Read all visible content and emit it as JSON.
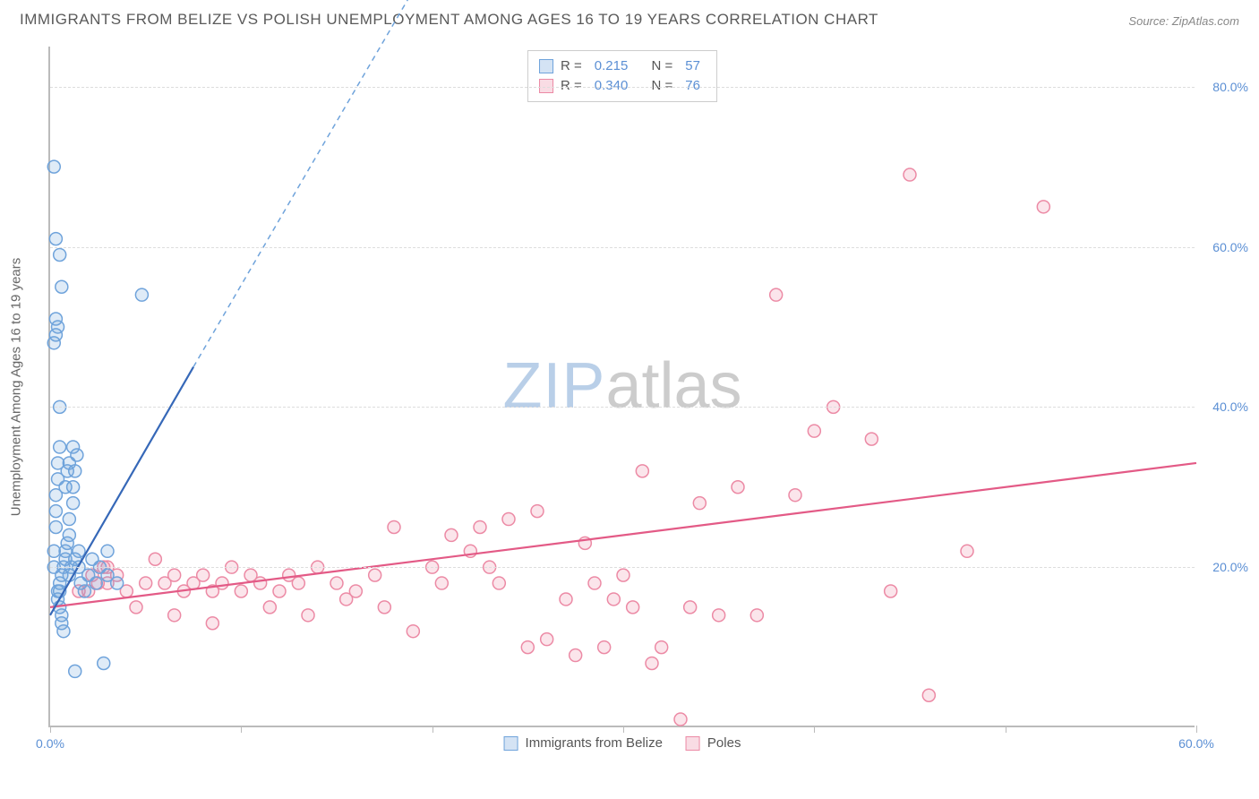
{
  "title": "IMMIGRANTS FROM BELIZE VS POLISH UNEMPLOYMENT AMONG AGES 16 TO 19 YEARS CORRELATION CHART",
  "source_label": "Source:",
  "source_value": "ZipAtlas.com",
  "watermark_zip": "ZIP",
  "watermark_atlas": "atlas",
  "chart": {
    "type": "scatter-with-regression",
    "ylabel": "Unemployment Among Ages 16 to 19 years",
    "background_color": "#ffffff",
    "grid_color": "#dddddd",
    "axis_color": "#bbbbbb",
    "tick_label_color": "#5b8fd4",
    "ylabel_color": "#666666",
    "label_fontsize": 15,
    "tick_fontsize": 14,
    "xlim": [
      0,
      60
    ],
    "ylim": [
      0,
      85
    ],
    "xtick_positions": [
      0,
      10,
      20,
      30,
      40,
      50,
      60
    ],
    "xtick_labels": [
      "0.0%",
      "",
      "",
      "",
      "",
      "",
      "60.0%"
    ],
    "ytick_positions": [
      20,
      40,
      60,
      80
    ],
    "ytick_labels": [
      "20.0%",
      "40.0%",
      "60.0%",
      "80.0%"
    ],
    "marker_radius": 7,
    "marker_stroke_width": 1.5,
    "marker_fill_opacity": 0.22,
    "trend_line_width": 2.2,
    "series": {
      "belize": {
        "label": "Immigrants from Belize",
        "color": "#6fa3db",
        "line_color": "#3668b8",
        "R": "0.215",
        "N": "57",
        "trend": {
          "x1": 0,
          "y1": 14,
          "x2": 7.5,
          "y2": 45,
          "dashed_to_x": 19,
          "dashed_to_y": 92
        },
        "points": [
          [
            0.2,
            20
          ],
          [
            0.2,
            22
          ],
          [
            0.3,
            25
          ],
          [
            0.3,
            27
          ],
          [
            0.3,
            29
          ],
          [
            0.4,
            31
          ],
          [
            0.4,
            33
          ],
          [
            0.5,
            35
          ],
          [
            0.5,
            40
          ],
          [
            0.2,
            48
          ],
          [
            0.3,
            49
          ],
          [
            0.4,
            50
          ],
          [
            0.3,
            51
          ],
          [
            0.6,
            55
          ],
          [
            0.5,
            59
          ],
          [
            0.3,
            61
          ],
          [
            0.2,
            70
          ],
          [
            0.5,
            18
          ],
          [
            0.5,
            17
          ],
          [
            0.6,
            19
          ],
          [
            0.7,
            20
          ],
          [
            0.8,
            21
          ],
          [
            0.8,
            22
          ],
          [
            0.9,
            23
          ],
          [
            1.0,
            24
          ],
          [
            1.0,
            26
          ],
          [
            1.2,
            28
          ],
          [
            1.2,
            30
          ],
          [
            1.3,
            32
          ],
          [
            1.4,
            34
          ],
          [
            1.5,
            20
          ],
          [
            1.6,
            18
          ],
          [
            1.8,
            17
          ],
          [
            2.0,
            19
          ],
          [
            2.2,
            21
          ],
          [
            2.4,
            18
          ],
          [
            2.6,
            20
          ],
          [
            3.0,
            19
          ],
          [
            3.0,
            22
          ],
          [
            3.5,
            18
          ],
          [
            4.8,
            54
          ],
          [
            2.8,
            8
          ],
          [
            1.3,
            7
          ],
          [
            0.6,
            14
          ],
          [
            0.5,
            15
          ],
          [
            0.4,
            16
          ],
          [
            0.4,
            17
          ],
          [
            1.0,
            19
          ],
          [
            1.1,
            20
          ],
          [
            1.3,
            21
          ],
          [
            1.5,
            22
          ],
          [
            0.8,
            30
          ],
          [
            0.9,
            32
          ],
          [
            1.0,
            33
          ],
          [
            1.2,
            35
          ],
          [
            0.6,
            13
          ],
          [
            0.7,
            12
          ]
        ]
      },
      "poles": {
        "label": "Poles",
        "color": "#ec8aa5",
        "line_color": "#e35a86",
        "R": "0.340",
        "N": "76",
        "trend": {
          "x1": 0,
          "y1": 15,
          "x2": 60,
          "y2": 33
        },
        "points": [
          [
            1.5,
            17
          ],
          [
            2.0,
            17
          ],
          [
            2.5,
            18
          ],
          [
            3.0,
            18
          ],
          [
            3.5,
            19
          ],
          [
            4.0,
            17
          ],
          [
            5.0,
            18
          ],
          [
            5.5,
            21
          ],
          [
            6.0,
            18
          ],
          [
            6.5,
            19
          ],
          [
            7.0,
            17
          ],
          [
            7.5,
            18
          ],
          [
            8.0,
            19
          ],
          [
            8.5,
            17
          ],
          [
            9.0,
            18
          ],
          [
            9.5,
            20
          ],
          [
            10.0,
            17
          ],
          [
            10.5,
            19
          ],
          [
            11.0,
            18
          ],
          [
            12.0,
            17
          ],
          [
            12.5,
            19
          ],
          [
            13.0,
            18
          ],
          [
            14.0,
            20
          ],
          [
            15.0,
            18
          ],
          [
            16.0,
            17
          ],
          [
            17.0,
            19
          ],
          [
            18.0,
            25
          ],
          [
            19.0,
            12
          ],
          [
            20.0,
            20
          ],
          [
            20.5,
            18
          ],
          [
            21.0,
            24
          ],
          [
            22.0,
            22
          ],
          [
            22.5,
            25
          ],
          [
            23.0,
            20
          ],
          [
            23.5,
            18
          ],
          [
            24.0,
            26
          ],
          [
            25.0,
            10
          ],
          [
            25.5,
            27
          ],
          [
            26.0,
            11
          ],
          [
            27.0,
            16
          ],
          [
            27.5,
            9
          ],
          [
            28.0,
            23
          ],
          [
            28.5,
            18
          ],
          [
            29.0,
            10
          ],
          [
            29.5,
            16
          ],
          [
            30.0,
            19
          ],
          [
            30.5,
            15
          ],
          [
            31.0,
            32
          ],
          [
            31.5,
            8
          ],
          [
            32.0,
            10
          ],
          [
            33.0,
            1
          ],
          [
            33.5,
            15
          ],
          [
            34.0,
            28
          ],
          [
            35.0,
            14
          ],
          [
            36.0,
            30
          ],
          [
            37.0,
            14
          ],
          [
            38.0,
            54
          ],
          [
            39.0,
            29
          ],
          [
            40.0,
            37
          ],
          [
            41.0,
            40
          ],
          [
            43.0,
            36
          ],
          [
            44.0,
            17
          ],
          [
            45.0,
            69
          ],
          [
            46.0,
            4
          ],
          [
            48.0,
            22
          ],
          [
            52.0,
            65
          ],
          [
            3.0,
            20
          ],
          [
            4.5,
            15
          ],
          [
            6.5,
            14
          ],
          [
            8.5,
            13
          ],
          [
            11.5,
            15
          ],
          [
            13.5,
            14
          ],
          [
            15.5,
            16
          ],
          [
            17.5,
            15
          ],
          [
            2.2,
            19
          ],
          [
            2.8,
            20
          ]
        ]
      }
    },
    "legend_box": {
      "R_label": "R =",
      "N_label": "N ="
    }
  }
}
